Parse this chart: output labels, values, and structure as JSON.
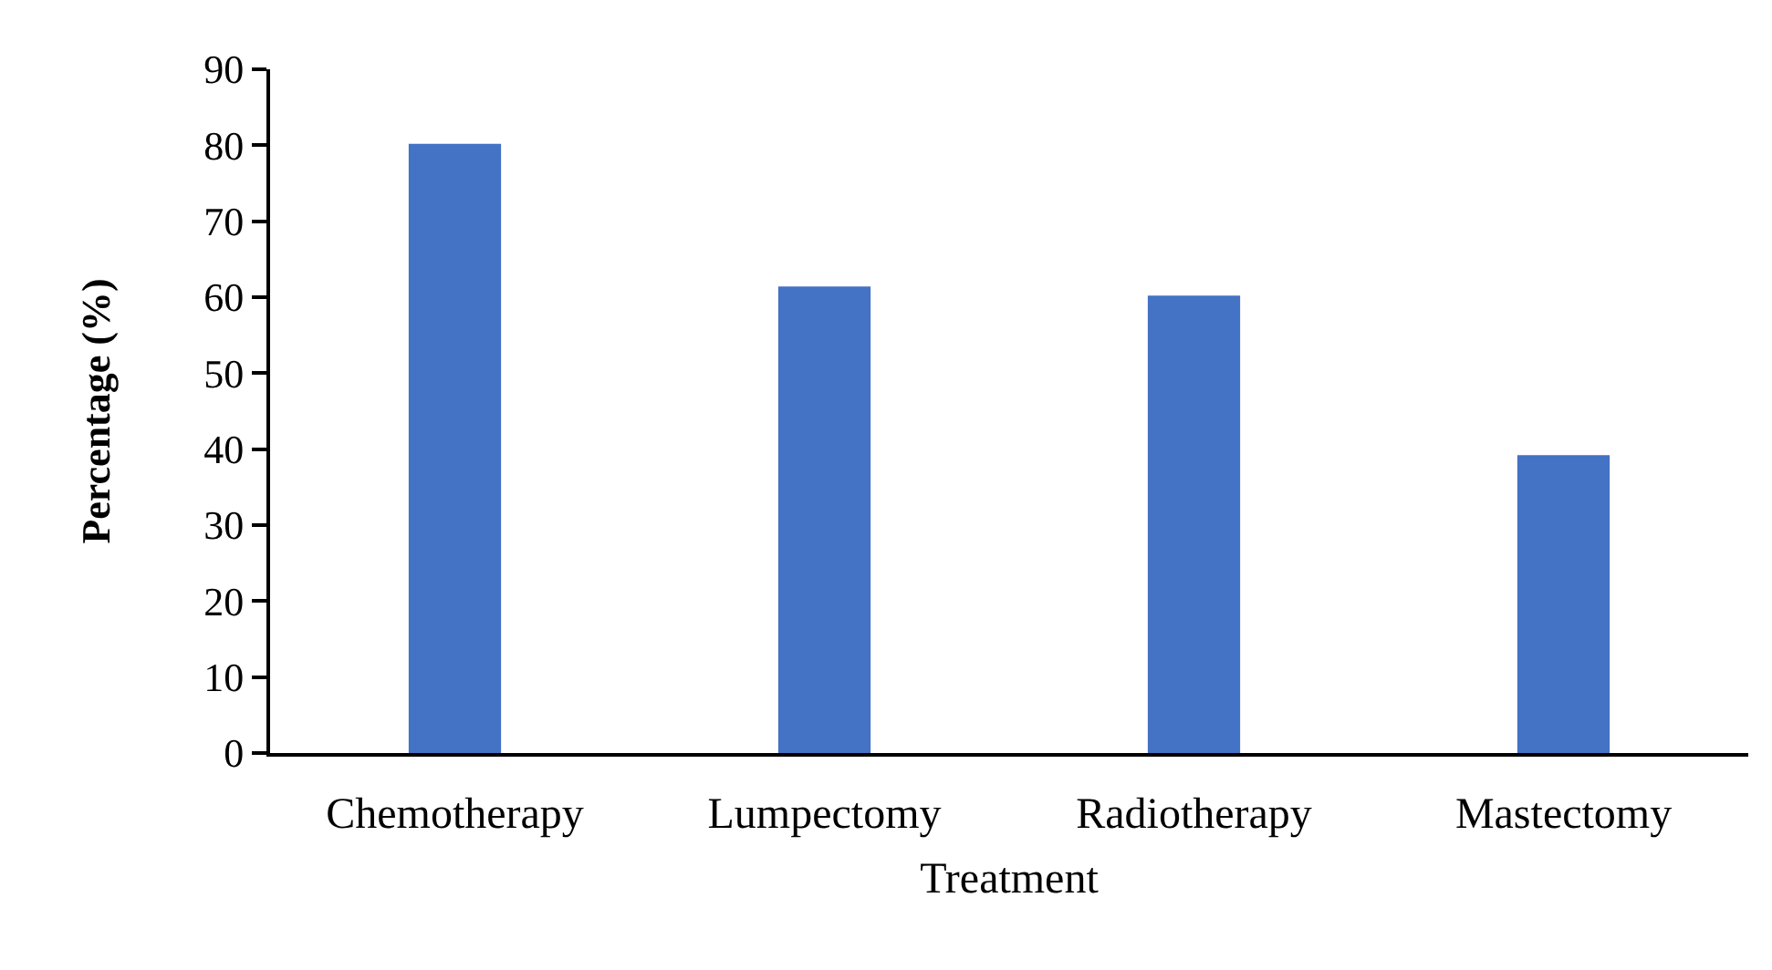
{
  "chart_data": {
    "type": "bar",
    "xlabel": "Treatment",
    "ylabel": "Percentage (%)",
    "categories": [
      "Chemotherapy",
      "Lumpectomy",
      "Radiotherapy",
      "Mastectomy"
    ],
    "values": [
      80.2,
      61.4,
      60.2,
      39.2
    ],
    "color": "#4472c4",
    "ylim": [
      0,
      90
    ],
    "yticks": [
      0,
      10,
      20,
      30,
      40,
      50,
      60,
      70,
      80,
      90
    ]
  }
}
